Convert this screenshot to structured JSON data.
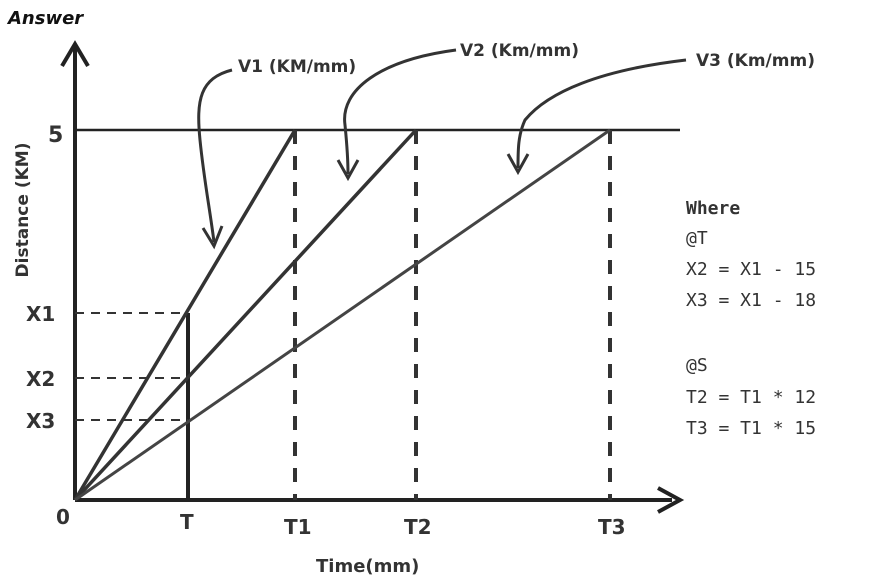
{
  "heading": "Answer",
  "axes": {
    "y_label": "Distance (KM)",
    "x_label": "Time(mm)",
    "origin_label": "0",
    "y_top_label": "5",
    "y_ticks": [
      "X1",
      "X2",
      "X3"
    ],
    "x_ticks": [
      "T",
      "T1",
      "T2",
      "T3"
    ]
  },
  "lines": [
    {
      "name": "V1 (KM/mm)"
    },
    {
      "name": "V2 (Km/mm)"
    },
    {
      "name": "V3 (Km/mm)"
    }
  ],
  "notes": {
    "title": "Where",
    "group1_label": "@T",
    "group1_lines": [
      "X2 = X1 - 15",
      "X3 = X1 - 18"
    ],
    "group2_label": "@S",
    "group2_lines": [
      "T2 = T1 * 12",
      "T3 = T1 * 15"
    ]
  },
  "colors": {
    "line": "#333333",
    "dash": "#333333",
    "axis": "#222222"
  }
}
